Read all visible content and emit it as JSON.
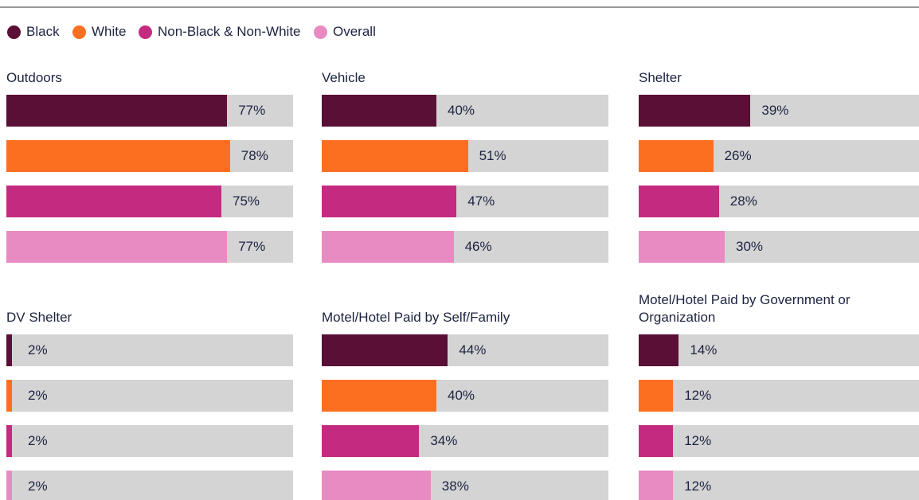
{
  "legend": {
    "names": [
      "Black",
      "White",
      "Non-Black & Non-White",
      "Overall"
    ],
    "colors": [
      "#5a0f36",
      "#fd6f20",
      "#c42a80",
      "#e88bc2"
    ]
  },
  "chart_data": [
    {
      "type": "bar",
      "title": "Outdoors",
      "values": [
        77,
        78,
        75,
        77
      ],
      "value_labels": [
        "77%",
        "78%",
        "75%",
        "77%"
      ],
      "xlim": [
        0,
        100
      ]
    },
    {
      "type": "bar",
      "title": "Vehicle",
      "values": [
        40,
        51,
        47,
        46
      ],
      "value_labels": [
        "40%",
        "51%",
        "47%",
        "46%"
      ],
      "xlim": [
        0,
        100
      ]
    },
    {
      "type": "bar",
      "title": "Shelter",
      "values": [
        39,
        26,
        28,
        30
      ],
      "value_labels": [
        "39%",
        "26%",
        "28%",
        "30%"
      ],
      "xlim": [
        0,
        100
      ]
    },
    {
      "type": "bar",
      "title": "DV Shelter",
      "values": [
        2,
        2,
        2,
        2
      ],
      "value_labels": [
        "2%",
        "2%",
        "2%",
        "2%"
      ],
      "xlim": [
        0,
        100
      ]
    },
    {
      "type": "bar",
      "title": "Motel/Hotel Paid by Self/Family",
      "values": [
        44,
        40,
        34,
        38
      ],
      "value_labels": [
        "44%",
        "40%",
        "34%",
        "38%"
      ],
      "xlim": [
        0,
        100
      ]
    },
    {
      "type": "bar",
      "title": "Motel/Hotel Paid by Government or Organization",
      "values": [
        14,
        12,
        12,
        12
      ],
      "value_labels": [
        "14%",
        "12%",
        "12%",
        "12%"
      ],
      "xlim": [
        0,
        100
      ]
    }
  ]
}
